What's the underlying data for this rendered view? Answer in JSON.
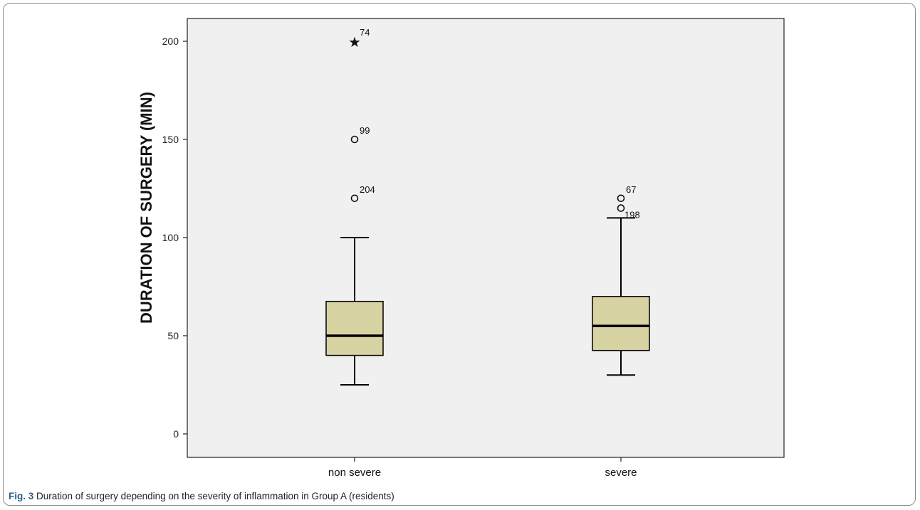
{
  "chart_data": {
    "type": "box",
    "ylabel": "DURATION OF SURGERY (MIN)",
    "xlabel": "",
    "ylim": [
      0,
      200
    ],
    "yticks": [
      0,
      50,
      100,
      150,
      200
    ],
    "categories": [
      "non severe",
      "severe"
    ],
    "boxes": [
      {
        "category": "non severe",
        "min": 25,
        "q1": 40,
        "median": 50,
        "q3": 67.5,
        "max": 100,
        "outliers": [
          {
            "value": 200,
            "label": "74",
            "marker": "star"
          },
          {
            "value": 150,
            "label": "99",
            "marker": "circle"
          },
          {
            "value": 120,
            "label": "204",
            "marker": "circle"
          }
        ]
      },
      {
        "category": "severe",
        "min": 30,
        "q1": 42.5,
        "median": 55,
        "q3": 70,
        "max": 110,
        "outliers": [
          {
            "value": 120,
            "label": "67",
            "marker": "circle"
          },
          {
            "value": 115,
            "label": "198",
            "marker": "circle"
          }
        ]
      }
    ],
    "colors": {
      "box_fill": "#d8d3a3",
      "plot_bg": "#f0f0f0",
      "stroke": "#000000"
    },
    "grid": false
  },
  "caption": {
    "label": "Fig. 3",
    "text": " Duration of surgery depending on the severity of inflammation in Group A (residents)"
  }
}
